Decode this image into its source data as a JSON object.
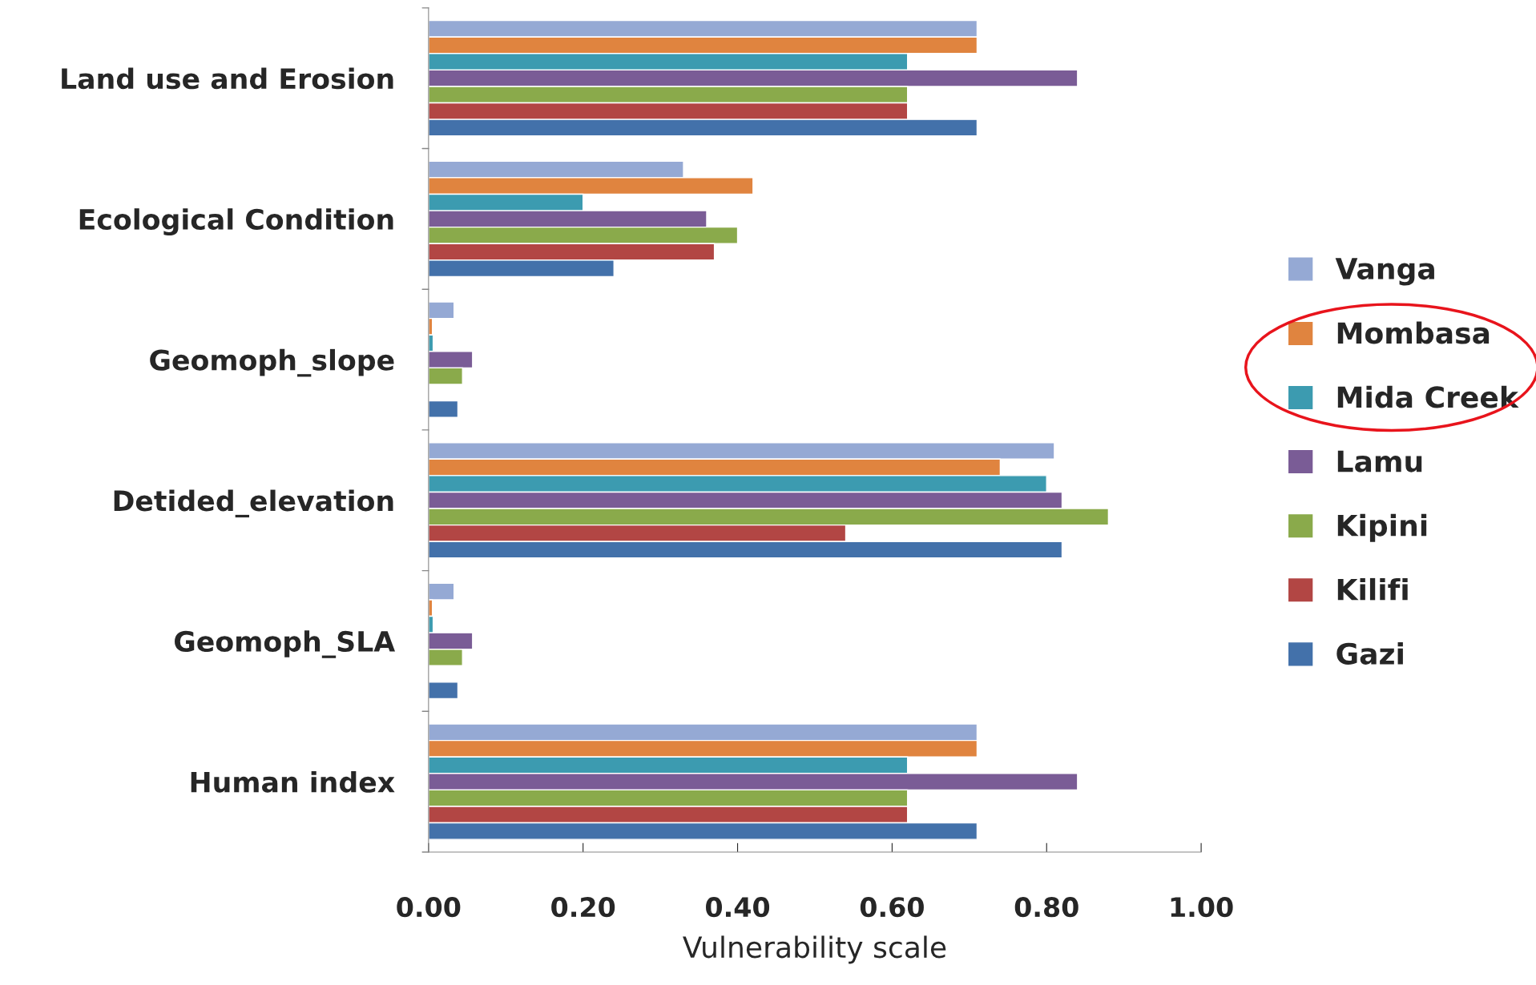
{
  "chart_data": {
    "type": "bar",
    "orientation": "horizontal",
    "xlabel": "Vulnerability scale",
    "categories": [
      "Land use and Erosion",
      "Ecological Condition",
      "Geomoph_slope",
      "Detided_elevation",
      "Geomoph_SLA",
      "Human index"
    ],
    "series": [
      {
        "name": "Vanga",
        "color": "#95a9d4",
        "values": [
          0.71,
          0.33,
          0.033,
          0.81,
          0.033,
          0.71
        ]
      },
      {
        "name": "Mombasa",
        "color": "#e0843f",
        "values": [
          0.71,
          0.42,
          0.005,
          0.74,
          0.005,
          0.71
        ]
      },
      {
        "name": "Mida Creek",
        "color": "#3c9bb0",
        "values": [
          0.62,
          0.2,
          0.006,
          0.8,
          0.006,
          0.62
        ]
      },
      {
        "name": "Lamu",
        "color": "#7a5c96",
        "values": [
          0.84,
          0.36,
          0.057,
          0.82,
          0.057,
          0.84
        ]
      },
      {
        "name": "Kipini",
        "color": "#8aaa4b",
        "values": [
          0.62,
          0.4,
          0.044,
          0.88,
          0.044,
          0.62
        ]
      },
      {
        "name": "Kilifi",
        "color": "#b24644",
        "values": [
          0.62,
          0.37,
          null,
          0.54,
          null,
          0.62
        ]
      },
      {
        "name": "Gazi",
        "color": "#4371aa",
        "values": [
          0.71,
          0.24,
          0.038,
          0.82,
          0.038,
          0.71
        ]
      }
    ],
    "xlim": [
      0,
      1
    ],
    "xticks": [
      {
        "value": 0,
        "label": "0.00"
      },
      {
        "value": 0.2,
        "label": "0.20"
      },
      {
        "value": 0.4,
        "label": "0.40"
      },
      {
        "value": 0.6,
        "label": "0.60"
      },
      {
        "value": 0.8,
        "label": "0.80"
      },
      {
        "value": 1,
        "label": "1.00"
      }
    ],
    "grid": false,
    "legend": "right"
  }
}
